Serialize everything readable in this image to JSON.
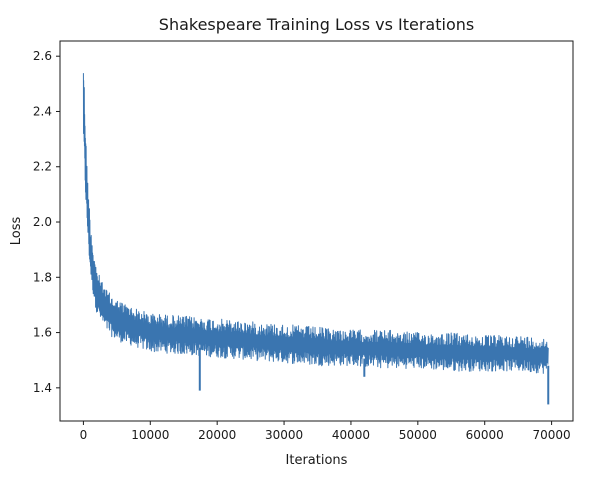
{
  "chart_data": {
    "type": "line",
    "title": "Shakespeare Training Loss vs Iterations",
    "xlabel": "Iterations",
    "ylabel": "Loss",
    "xlim": [
      -3500,
      73200
    ],
    "ylim": [
      1.28,
      2.655
    ],
    "xticks": [
      0,
      10000,
      20000,
      30000,
      40000,
      50000,
      60000,
      70000
    ],
    "xtick_labels": [
      "0",
      "10000",
      "20000",
      "30000",
      "40000",
      "50000",
      "60000",
      "70000"
    ],
    "yticks": [
      1.4,
      1.6,
      1.8,
      2.0,
      2.2,
      2.4,
      2.6
    ],
    "ytick_labels": [
      "1.4",
      "1.6",
      "1.8",
      "2.0",
      "2.2",
      "2.4",
      "2.6"
    ],
    "grid": false,
    "legend": "none",
    "line_color": "#3a75b0",
    "series": [
      {
        "x": [
          0,
          200,
          500,
          1000,
          1500,
          2000,
          3000,
          4000,
          5000,
          7500,
          10000,
          15000,
          20000,
          25000,
          30000,
          35000,
          40000,
          45000,
          50000,
          55000,
          60000,
          65000,
          69500
        ],
        "upper": [
          2.61,
          2.45,
          2.22,
          2.02,
          1.9,
          1.83,
          1.77,
          1.74,
          1.72,
          1.69,
          1.67,
          1.66,
          1.65,
          1.64,
          1.63,
          1.62,
          1.61,
          1.61,
          1.6,
          1.6,
          1.59,
          1.59,
          1.58
        ],
        "lower": [
          2.3,
          2.15,
          2.0,
          1.82,
          1.73,
          1.67,
          1.62,
          1.59,
          1.57,
          1.55,
          1.53,
          1.52,
          1.51,
          1.5,
          1.49,
          1.48,
          1.48,
          1.47,
          1.47,
          1.46,
          1.46,
          1.46,
          1.45
        ]
      }
    ],
    "spikes": [
      {
        "x": 17400,
        "y": 1.39
      },
      {
        "x": 42000,
        "y": 1.44
      },
      {
        "x": 69500,
        "y": 1.34
      }
    ]
  }
}
